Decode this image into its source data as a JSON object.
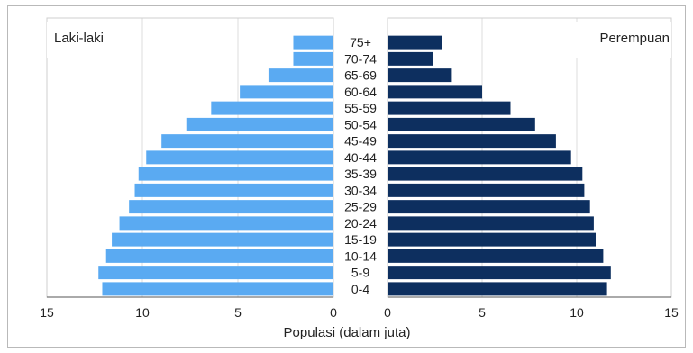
{
  "chart_data": {
    "type": "bar",
    "subtype": "population-pyramid",
    "title": "",
    "xlabel": "Populasi (dalam juta)",
    "ylabel": "",
    "categories": [
      "75+",
      "70-74",
      "65-69",
      "60-64",
      "55-59",
      "50-54",
      "45-49",
      "40-44",
      "35-39",
      "30-34",
      "25-29",
      "20-24",
      "15-19",
      "10-14",
      "5-9",
      "0-4"
    ],
    "series": [
      {
        "name": "Laki-laki",
        "color": "#5aaaf2",
        "values": [
          2.1,
          2.1,
          3.4,
          4.9,
          6.4,
          7.7,
          9.0,
          9.8,
          10.2,
          10.4,
          10.7,
          11.2,
          11.6,
          11.9,
          12.3,
          12.1
        ]
      },
      {
        "name": "Perempuan",
        "color": "#0d2f5f",
        "values": [
          2.9,
          2.4,
          3.4,
          5.0,
          6.5,
          7.8,
          8.9,
          9.7,
          10.3,
          10.4,
          10.7,
          10.9,
          11.0,
          11.4,
          11.8,
          11.6
        ]
      }
    ],
    "xlim_left": [
      15,
      0
    ],
    "xlim_right": [
      0,
      15
    ],
    "left_ticks": [
      "15",
      "10",
      "5",
      "0"
    ],
    "right_ticks": [
      "0",
      "5",
      "10",
      "15"
    ],
    "grid": true
  }
}
